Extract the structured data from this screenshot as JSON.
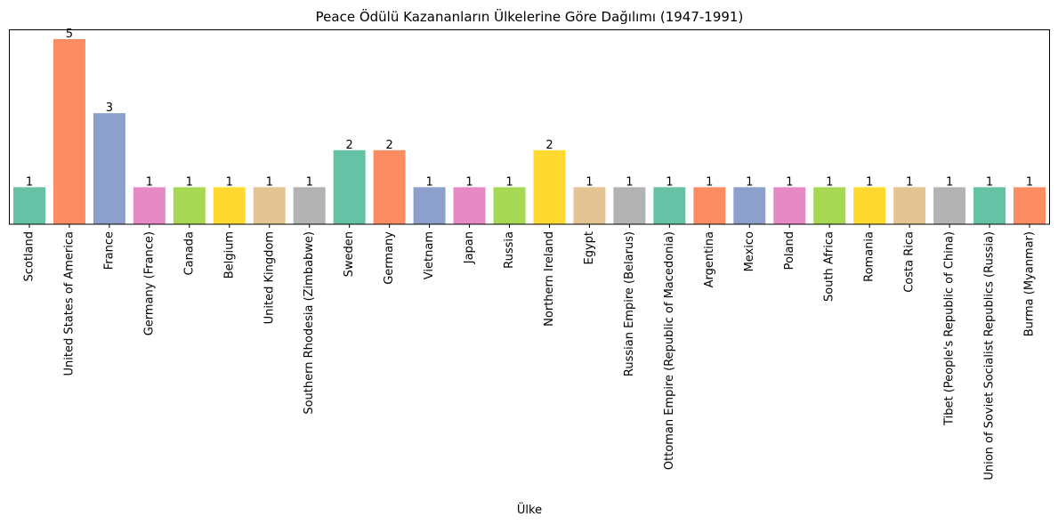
{
  "chart_data": {
    "type": "bar",
    "title": "Peace Ödülü Kazananların Ülkelerine Göre Dağılımı (1947-1991)",
    "xlabel": "Ülke",
    "ylabel": "",
    "ylim": [
      0,
      5.25
    ],
    "grid": false,
    "categories": [
      "Scotland",
      "United States of America",
      "France",
      "Germany (France)",
      "Canada",
      "Belgium",
      "United Kingdom",
      "Southern Rhodesia (Zimbabwe)",
      "Sweden",
      "Germany",
      "Vietnam",
      "Japan",
      "Russia",
      "Northern Ireland",
      "Egypt",
      "Russian Empire (Belarus)",
      "Ottoman Empire (Republic of Macedonia)",
      "Argentina",
      "Mexico",
      "Poland",
      "South Africa",
      "Romania",
      "Costa Rica",
      "Tibet (People's Republic of China)",
      "Union of Soviet Socialist Republics (Russia)",
      "Burma (Myanmar)"
    ],
    "values": [
      1,
      5,
      3,
      1,
      1,
      1,
      1,
      1,
      2,
      2,
      1,
      1,
      1,
      2,
      1,
      1,
      1,
      1,
      1,
      1,
      1,
      1,
      1,
      1,
      1,
      1
    ],
    "colors": [
      "#66c2a5",
      "#fc8d62",
      "#8da0cb",
      "#e78ac3",
      "#a6d854",
      "#ffd92f",
      "#e5c494",
      "#b3b3b3"
    ]
  }
}
